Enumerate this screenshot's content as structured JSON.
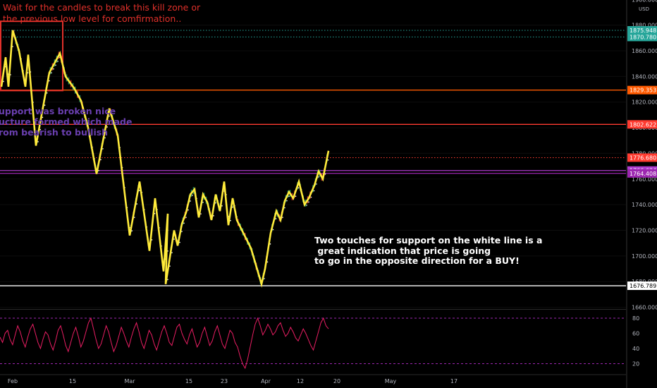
{
  "chart_data": {
    "type": "line",
    "price_axis": {
      "currency": "USD",
      "ticks": [
        {
          "value": 1900,
          "label": "1900.000"
        },
        {
          "value": 1880,
          "label": "1880.000"
        },
        {
          "value": 1860,
          "label": "1860.000"
        },
        {
          "value": 1840,
          "label": "1840.000"
        },
        {
          "value": 1820,
          "label": "1820.000"
        },
        {
          "value": 1800,
          "label": "1800.000"
        },
        {
          "value": 1780,
          "label": "1780.000"
        },
        {
          "value": 1760,
          "label": "1760.000"
        },
        {
          "value": 1740,
          "label": "1740.000"
        },
        {
          "value": 1720,
          "label": "1720.000"
        },
        {
          "value": 1700,
          "label": "1700.000"
        },
        {
          "value": 1680,
          "label": "1680.000"
        },
        {
          "value": 1660,
          "label": "1660.000"
        }
      ],
      "ylim": [
        1656,
        1900
      ]
    },
    "time_axis": {
      "labels": [
        "Feb",
        "15",
        "Mar",
        "15",
        "23",
        "Apr",
        "12",
        "20",
        "May",
        "17"
      ]
    },
    "horizontal_levels": [
      {
        "value": 1875.948,
        "label": "1875.948",
        "color": "#26a69a",
        "style": "dotted"
      },
      {
        "value": 1870.78,
        "label": "1870.780",
        "color": "#26a69a",
        "style": "dotted"
      },
      {
        "value": 1829.353,
        "label": "1829.353",
        "color": "#ff5a00",
        "style": "solid"
      },
      {
        "value": 1802.622,
        "label": "1802.622",
        "color": "#ff3b30",
        "style": "solid"
      },
      {
        "value": 1776.68,
        "label": "1776.680",
        "color": "#ff3b30",
        "style": "dotted"
      },
      {
        "value": 1766.634,
        "label": "1766.634",
        "color": "#b03cd0",
        "style": "solid"
      },
      {
        "value": 1764.408,
        "label": "1764.408",
        "color": "#9c27b0",
        "style": "solid"
      },
      {
        "value": 1676.789,
        "label": "1676.789",
        "color": "#ffffff",
        "style": "solid"
      }
    ],
    "zigzag": {
      "color": "#ffeb3b",
      "points": [
        [
          0,
          1832
        ],
        [
          1,
          1855
        ],
        [
          2,
          1832
        ],
        [
          3,
          1876
        ],
        [
          4,
          1860
        ],
        [
          5,
          1832
        ],
        [
          6,
          1857
        ],
        [
          7,
          1786
        ],
        [
          8,
          1843
        ],
        [
          9,
          1858
        ],
        [
          10,
          1840
        ],
        [
          11,
          1831
        ],
        [
          12,
          1821
        ],
        [
          13,
          1800
        ],
        [
          14,
          1764
        ],
        [
          15,
          1815
        ],
        [
          16,
          1794
        ],
        [
          17,
          1716
        ],
        [
          18,
          1758
        ],
        [
          19,
          1704
        ],
        [
          20,
          1745
        ],
        [
          21,
          1688
        ],
        [
          22,
          1733
        ],
        [
          23,
          1678
        ],
        [
          24,
          1720
        ],
        [
          25,
          1708
        ],
        [
          26,
          1725
        ],
        [
          27,
          1734
        ],
        [
          28,
          1748
        ],
        [
          29,
          1752
        ],
        [
          30,
          1730
        ],
        [
          31,
          1748
        ],
        [
          32,
          1742
        ],
        [
          33,
          1728
        ],
        [
          34,
          1748
        ],
        [
          35,
          1735
        ],
        [
          36,
          1758
        ],
        [
          37,
          1724
        ],
        [
          38,
          1745
        ],
        [
          39,
          1728
        ],
        [
          40,
          1706
        ],
        [
          41,
          1678
        ],
        [
          42,
          1690
        ],
        [
          43,
          1718
        ],
        [
          44,
          1735
        ],
        [
          45,
          1728
        ],
        [
          46,
          1743
        ],
        [
          47,
          1750
        ],
        [
          48,
          1745
        ],
        [
          49,
          1758
        ],
        [
          50,
          1740
        ],
        [
          51,
          1745
        ],
        [
          52,
          1755
        ],
        [
          53,
          1766
        ],
        [
          54,
          1760
        ],
        [
          55,
          1782
        ]
      ]
    },
    "kill_zone": {
      "color": "#e0302a",
      "y_top": 1883,
      "y_bottom": 1829
    },
    "rsi": {
      "axis_ticks": [
        80,
        60,
        40,
        20
      ],
      "bands": [
        80,
        20
      ],
      "color": "#e91e63",
      "values": [
        55,
        48,
        60,
        64,
        52,
        45,
        58,
        70,
        62,
        50,
        42,
        55,
        66,
        72,
        60,
        48,
        40,
        52,
        62,
        58,
        46,
        38,
        50,
        64,
        70,
        58,
        44,
        36,
        48,
        60,
        68,
        56,
        42,
        50,
        62,
        74,
        80,
        66,
        52,
        40,
        46,
        58,
        70,
        62,
        48,
        36,
        44,
        56,
        68,
        60,
        50,
        42,
        55,
        66,
        74,
        62,
        48,
        40,
        52,
        64,
        58,
        46,
        38,
        50,
        62,
        70,
        60,
        48,
        44,
        56,
        68,
        72,
        60,
        52,
        46,
        58,
        66,
        54,
        42,
        48,
        60,
        68,
        56,
        44,
        50,
        62,
        70,
        58,
        46,
        40,
        52,
        64,
        60,
        48,
        42,
        30,
        20,
        14,
        26,
        42,
        58,
        72,
        80,
        70,
        58,
        64,
        72,
        66,
        58,
        62,
        70,
        74,
        64,
        56,
        60,
        68,
        62,
        54,
        50,
        58,
        66,
        60,
        52,
        44,
        38,
        50,
        62,
        74,
        80,
        70,
        66
      ]
    }
  },
  "annotations": {
    "top_note": "Wait for the candles to break this kill zone or\nthe previous low level for comfirmation..",
    "left_note": "upport was broken nice\nucture formed which made\nrom bearish to bullish",
    "right_note": "Two touches for support on the white line is a\n great indication that price is going\nto go in the opposite direction for a BUY!"
  }
}
